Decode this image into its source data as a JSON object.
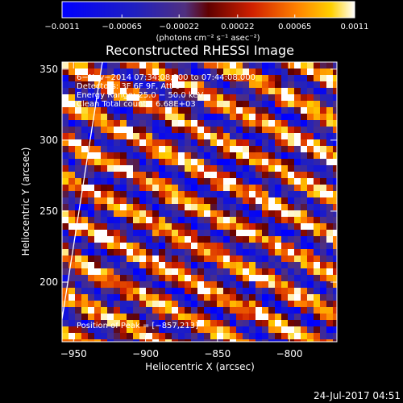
{
  "chart_data": {
    "type": "heatmap",
    "title": "Reconstructed RHESSI Image",
    "xlabel": "Heliocentric X (arcsec)",
    "ylabel": "Heliocentric Y (arcsec)",
    "xlim": [
      -958,
      -767
    ],
    "ylim": [
      158,
      355
    ],
    "x_ticks": [
      -950,
      -900,
      -850,
      -800
    ],
    "y_ticks": [
      200,
      250,
      300,
      350
    ],
    "x_tick_labels": [
      "−950",
      "−900",
      "−850",
      "−800"
    ],
    "y_tick_labels": [
      "200",
      "250",
      "300",
      "350"
    ],
    "colorbar": {
      "range": [
        -0.0011,
        0.0011
      ],
      "ticks": [
        -0.0011,
        -0.00065,
        -0.00022,
        0.00022,
        0.00065,
        0.0011
      ],
      "tick_labels": [
        "−0.0011",
        "−0.00065",
        "−0.00022",
        "0.00022",
        "0.00065",
        "0.0011"
      ],
      "label": "(photons cm⁻² s⁻¹ asec⁻²)",
      "colormap": "rhessi-3color"
    },
    "annotations": [
      "6−Nov−2014 07:34:08.000 to 07:44:08.000",
      "Detectors: 3F 6F 9F, Att 0",
      "Energy Range: 25.0 − 50.0 keV",
      "Clean      Total counts: 6.68E+03"
    ],
    "peak_label": "Position of Peak = [−857,213]",
    "peak": {
      "x": -857,
      "y": 213
    },
    "grid": false,
    "limb_line": {
      "x0": -958,
      "y0": 174,
      "x1": -930,
      "y1": 355
    },
    "pattern": "diagonal stripes of alternating positive and negative flux"
  },
  "footer": {
    "date": "24-Jul-2017 04:51"
  }
}
